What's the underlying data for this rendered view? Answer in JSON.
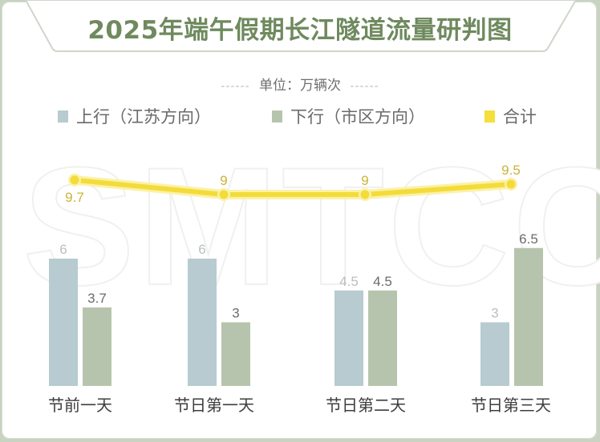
{
  "header": {
    "title": "2025年端午假期长江隧道流量研判图"
  },
  "unit": {
    "dash_left": "------",
    "label": "单位：万辆次",
    "dash_right": "------"
  },
  "legend": [
    {
      "label": "上行（江苏方向）",
      "color": "#b7cbd1",
      "icon": "square-swatch"
    },
    {
      "label": "下行（市区方向）",
      "color": "#b7c4ad",
      "icon": "square-swatch"
    },
    {
      "label": "合计",
      "color": "#f5df3a",
      "icon": "square-swatch"
    }
  ],
  "watermark": "SMTCC",
  "colors": {
    "title": "#6f8a5e",
    "up": "#b7cbd1",
    "down": "#b7c4ad",
    "total_line": "#f3dc3a",
    "total_label": "#c9b43b",
    "up_label": "#b9bfc2",
    "down_label": "#6b6b6b",
    "frame": "#c9d3c1"
  },
  "chart_data": {
    "type": "bar",
    "title": "2025年端午假期长江隧道流量研判图",
    "subtitle": "单位：万辆次",
    "xlabel": "",
    "ylabel": "万辆次",
    "categories": [
      "节前一天",
      "节日第一天",
      "节日第二天",
      "节日第三天"
    ],
    "series": [
      {
        "name": "上行（江苏方向）",
        "type": "bar",
        "values": [
          6,
          6,
          4.5,
          3
        ]
      },
      {
        "name": "下行（市区方向）",
        "type": "bar",
        "values": [
          3.7,
          3,
          4.5,
          6.5
        ]
      },
      {
        "name": "合计",
        "type": "line",
        "values": [
          9.7,
          9,
          9,
          9.5
        ]
      }
    ],
    "legend_position": "top",
    "grid": false
  }
}
